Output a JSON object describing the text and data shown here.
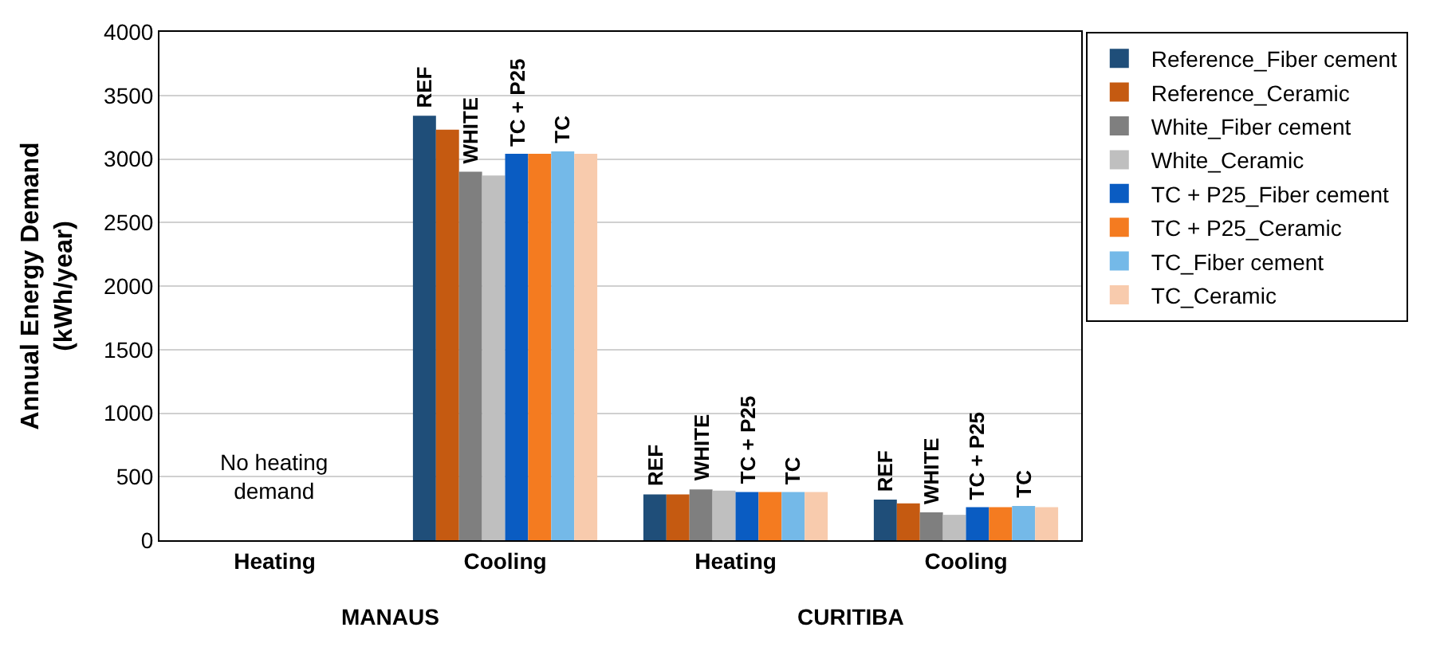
{
  "chart_data": {
    "type": "bar",
    "ylabel": "Annual Energy Demand\n(kWh/year)",
    "categories": [
      "Heating",
      "Cooling",
      "Heating",
      "Cooling"
    ],
    "series": [
      {
        "name": "Reference_Fiber cement",
        "color": "#1f4e79",
        "values": [
          null,
          3340,
          360,
          320
        ]
      },
      {
        "name": "Reference_Ceramic",
        "color": "#c55a11",
        "values": [
          null,
          3230,
          360,
          290
        ]
      },
      {
        "name": "White_Fiber cement",
        "color": "#7f7f7f",
        "values": [
          null,
          2900,
          400,
          220
        ]
      },
      {
        "name": "White_Ceramic",
        "color": "#bfbfbf",
        "values": [
          null,
          2870,
          390,
          200
        ]
      },
      {
        "name": "TC + P25_Fiber cement",
        "color": "#0a5cc2",
        "values": [
          null,
          3040,
          380,
          260
        ]
      },
      {
        "name": "TC + P25_Ceramic",
        "color": "#f47b20",
        "values": [
          null,
          3040,
          380,
          260
        ]
      },
      {
        "name": "TC_Fiber cement",
        "color": "#74b9e8",
        "values": [
          null,
          3060,
          380,
          270
        ]
      },
      {
        "name": "TC_Ceramic",
        "color": "#f8cbad",
        "values": [
          null,
          3040,
          380,
          260
        ]
      }
    ],
    "ylim": [
      0,
      4000
    ],
    "yticks": [
      0,
      500,
      1000,
      1500,
      2000,
      2500,
      3000,
      3500,
      4000
    ],
    "grid": "y",
    "legend": "right",
    "annotations": [
      "No heating\ndemand",
      "MANAUS",
      "CURITIBA",
      "REF",
      "WHITE",
      "TC + P25",
      "TC",
      "REF",
      "WHITE",
      "TC + P25",
      "TC",
      "REF",
      "WHITE",
      "TC + P25",
      "TC"
    ]
  }
}
